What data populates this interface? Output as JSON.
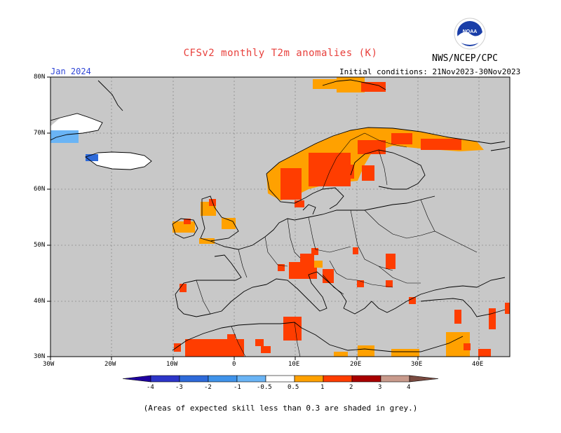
{
  "title": "CFSv2 monthly T2m anomalies (K)",
  "org": "NWS/NCEP/CPC",
  "logo_text": "NOAA",
  "month_label": "Jan 2024",
  "init_label": "Initial conditions: 21Nov2023-30Nov2023",
  "note": "(Areas of expected skill less than 0.3 are shaded in grey.)",
  "map": {
    "lon_range": [
      -30,
      45
    ],
    "lat_range": [
      30,
      80
    ],
    "lon_labels": [
      "30W",
      "20W",
      "10W",
      "0",
      "10E",
      "20E",
      "30E",
      "40E"
    ],
    "lat_labels": [
      "30N",
      "40N",
      "50N",
      "60N",
      "70N",
      "80N"
    ],
    "background_color": "#c8c8c8",
    "gridlines": "dotted"
  },
  "colorbar": {
    "labels": [
      "-4",
      "-3",
      "-2",
      "-1",
      "-0.5",
      "0.5",
      "1",
      "2",
      "3",
      "4"
    ],
    "colors": [
      "#1e00a0",
      "#2d35c8",
      "#2e6ad9",
      "#3f93ea",
      "#6ab4f5",
      "#ffffff",
      "#ffa100",
      "#ff3d00",
      "#a80000",
      "#c89a8c",
      "#7a4a40"
    ]
  },
  "anomaly_regions": [
    {
      "name": "Northern Scandinavia",
      "category": "1-2"
    },
    {
      "name": "Norway coast",
      "category": "0.5-1"
    },
    {
      "name": "Kola / Barents coast",
      "category": "1-2"
    },
    {
      "name": "Svalbard",
      "category": "0.5-1"
    },
    {
      "name": "Alps / Northern Italy",
      "category": "1-2"
    },
    {
      "name": "Scotland",
      "category": "0.5-1"
    },
    {
      "name": "Ireland",
      "category": "0.5-1"
    },
    {
      "name": "Northwest Africa",
      "category": "1-2"
    },
    {
      "name": "Tunisia",
      "category": "1-2"
    },
    {
      "name": "Levant",
      "category": "0.5-1"
    },
    {
      "name": "Greenland east coast",
      "category": "-1 to -0.5"
    },
    {
      "name": "Iceland",
      "category": "-0.5 to 0.5"
    }
  ]
}
